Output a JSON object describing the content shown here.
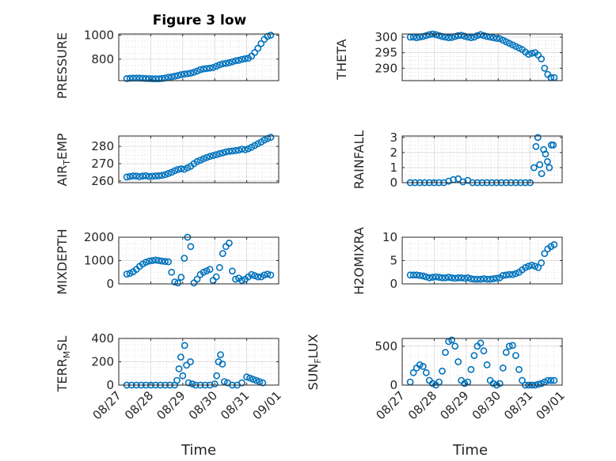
{
  "figure": {
    "title": "Figure 3 low",
    "xlabel": "Time"
  },
  "colors": {
    "marker": "#0072bd",
    "axis": "#262626"
  },
  "chart_data": [
    {
      "type": "scatter",
      "ylabel": "PRESSURE",
      "title": "Figure 3 low",
      "xlim": [
        "08/27",
        "09/01"
      ],
      "ylim": [
        620,
        1010
      ],
      "yticks": [
        800,
        1000
      ],
      "grid": true,
      "x": [
        0.25,
        0.35,
        0.45,
        0.55,
        0.65,
        0.75,
        0.85,
        0.95,
        1.05,
        1.15,
        1.25,
        1.35,
        1.45,
        1.55,
        1.65,
        1.75,
        1.85,
        1.95,
        2.05,
        2.15,
        2.25,
        2.35,
        2.45,
        2.55,
        2.65,
        2.75,
        2.85,
        2.95,
        3.05,
        3.15,
        3.25,
        3.35,
        3.45,
        3.55,
        3.65,
        3.75,
        3.85,
        3.95,
        4.05,
        4.15,
        4.25,
        4.35,
        4.45,
        4.55,
        4.65,
        4.75
      ],
      "values": [
        637,
        640,
        641,
        641,
        641,
        640,
        638,
        637,
        636,
        636,
        636,
        638,
        642,
        648,
        652,
        657,
        663,
        670,
        675,
        678,
        683,
        690,
        700,
        712,
        718,
        722,
        725,
        730,
        740,
        752,
        760,
        765,
        770,
        778,
        786,
        790,
        798,
        803,
        808,
        825,
        855,
        890,
        930,
        965,
        990,
        1000
      ]
    },
    {
      "type": "scatter",
      "ylabel": "THETA",
      "xlim": [
        "08/27",
        "09/01"
      ],
      "ylim": [
        286,
        301
      ],
      "yticks": [
        290,
        295,
        300
      ],
      "grid": true,
      "x": [
        0.25,
        0.35,
        0.45,
        0.55,
        0.65,
        0.75,
        0.85,
        0.95,
        1.05,
        1.15,
        1.25,
        1.35,
        1.45,
        1.55,
        1.65,
        1.75,
        1.85,
        1.95,
        2.05,
        2.15,
        2.25,
        2.35,
        2.45,
        2.55,
        2.65,
        2.75,
        2.85,
        2.95,
        3.05,
        3.15,
        3.25,
        3.35,
        3.45,
        3.55,
        3.65,
        3.75,
        3.85,
        3.95,
        4.05,
        4.15,
        4.25,
        4.35,
        4.45,
        4.55,
        4.65,
        4.75
      ],
      "values": [
        300,
        300,
        299.8,
        300,
        300.2,
        300.5,
        300.8,
        301,
        300.8,
        300.5,
        300.2,
        300,
        299.8,
        299.9,
        300.2,
        300.5,
        300.6,
        300.3,
        300,
        299.8,
        300,
        300.5,
        300.8,
        300.5,
        300.2,
        300,
        299.8,
        299.6,
        299.5,
        299,
        298.5,
        298,
        297.5,
        297,
        296.5,
        296,
        295.2,
        294.5,
        294.8,
        295,
        294.2,
        293,
        290,
        288,
        287,
        287
      ]
    },
    {
      "type": "scatter",
      "ylabel": "AIR_TEMP",
      "xlim": [
        "08/27",
        "09/01"
      ],
      "ylim": [
        259,
        286
      ],
      "yticks": [
        260,
        270,
        280
      ],
      "grid": true,
      "x": [
        0.25,
        0.35,
        0.45,
        0.55,
        0.65,
        0.75,
        0.85,
        0.95,
        1.05,
        1.15,
        1.25,
        1.35,
        1.45,
        1.55,
        1.65,
        1.75,
        1.85,
        1.95,
        2.05,
        2.15,
        2.25,
        2.35,
        2.45,
        2.55,
        2.65,
        2.75,
        2.85,
        2.95,
        3.05,
        3.15,
        3.25,
        3.35,
        3.45,
        3.55,
        3.65,
        3.75,
        3.85,
        3.95,
        4.05,
        4.15,
        4.25,
        4.35,
        4.45,
        4.55,
        4.65,
        4.75
      ],
      "values": [
        262.3,
        262.6,
        262.9,
        262.8,
        262.5,
        262.8,
        263,
        262.6,
        262.7,
        262.9,
        263,
        263.2,
        263.6,
        264.3,
        265,
        265.9,
        266.6,
        267,
        266.8,
        267.6,
        268.5,
        270,
        271.2,
        272,
        272.8,
        273.6,
        274.2,
        274.7,
        275.2,
        275.8,
        276.2,
        276.8,
        277.1,
        277.3,
        277.6,
        277.8,
        278.4,
        278.1,
        278.6,
        279.5,
        280.5,
        281.5,
        282.5,
        283.6,
        284.5,
        285.2
      ]
    },
    {
      "type": "scatter",
      "ylabel": "RAINFALL",
      "xlim": [
        "08/27",
        "09/01"
      ],
      "ylim": [
        0,
        3.1
      ],
      "yticks": [
        0,
        1,
        2,
        3
      ],
      "grid": true,
      "x": [
        0.25,
        0.4,
        0.55,
        0.7,
        0.85,
        1.0,
        1.15,
        1.3,
        1.45,
        1.6,
        1.75,
        1.9,
        2.05,
        2.2,
        2.35,
        2.5,
        2.65,
        2.8,
        2.95,
        3.1,
        3.25,
        3.4,
        3.55,
        3.7,
        3.85,
        4.0,
        4.12,
        4.18,
        4.24,
        4.3,
        4.36,
        4.42,
        4.48,
        4.54,
        4.6,
        4.66,
        4.72
      ],
      "values": [
        0,
        0,
        0,
        0,
        0,
        0,
        0,
        0,
        0.1,
        0.2,
        0.25,
        0.05,
        0.15,
        0,
        0,
        0,
        0,
        0,
        0,
        0,
        0,
        0,
        0,
        0,
        0,
        0,
        1.0,
        2.4,
        3.0,
        1.2,
        0.6,
        2.2,
        1.9,
        1.4,
        1.0,
        2.5,
        2.5
      ]
    },
    {
      "type": "scatter",
      "ylabel": "MIXDEPTH",
      "xlim": [
        "08/27",
        "09/01"
      ],
      "ylim": [
        0,
        2000
      ],
      "yticks": [
        0,
        1000,
        2000
      ],
      "grid": true,
      "x": [
        0.25,
        0.35,
        0.45,
        0.55,
        0.65,
        0.75,
        0.85,
        0.95,
        1.05,
        1.15,
        1.25,
        1.35,
        1.45,
        1.55,
        1.65,
        1.75,
        1.85,
        1.95,
        2.05,
        2.15,
        2.25,
        2.35,
        2.45,
        2.55,
        2.65,
        2.75,
        2.85,
        2.95,
        3.05,
        3.15,
        3.25,
        3.35,
        3.45,
        3.55,
        3.65,
        3.75,
        3.85,
        3.95,
        4.05,
        4.15,
        4.25,
        4.35,
        4.45,
        4.55,
        4.65,
        4.75
      ],
      "values": [
        420,
        450,
        520,
        620,
        750,
        850,
        930,
        980,
        1000,
        1020,
        1000,
        980,
        960,
        950,
        500,
        80,
        40,
        280,
        1100,
        2000,
        1600,
        40,
        200,
        400,
        500,
        560,
        620,
        150,
        300,
        700,
        1300,
        1600,
        1750,
        550,
        200,
        250,
        150,
        200,
        300,
        400,
        350,
        300,
        300,
        380,
        420,
        380
      ]
    },
    {
      "type": "scatter",
      "ylabel": "H2OMIXRA",
      "xlim": [
        "08/27",
        "09/01"
      ],
      "ylim": [
        0,
        10
      ],
      "yticks": [
        0,
        5,
        10
      ],
      "grid": true,
      "x": [
        0.25,
        0.35,
        0.45,
        0.55,
        0.65,
        0.75,
        0.85,
        0.95,
        1.05,
        1.15,
        1.25,
        1.35,
        1.45,
        1.55,
        1.65,
        1.75,
        1.85,
        1.95,
        2.05,
        2.15,
        2.25,
        2.35,
        2.45,
        2.55,
        2.65,
        2.75,
        2.85,
        2.95,
        3.05,
        3.15,
        3.25,
        3.35,
        3.45,
        3.55,
        3.65,
        3.75,
        3.85,
        3.95,
        4.05,
        4.15,
        4.25,
        4.35,
        4.45,
        4.55,
        4.65,
        4.75
      ],
      "values": [
        1.9,
        1.9,
        1.9,
        1.8,
        1.7,
        1.5,
        1.3,
        1.4,
        1.5,
        1.4,
        1.3,
        1.3,
        1.4,
        1.3,
        1.2,
        1.3,
        1.3,
        1.2,
        1.3,
        1.1,
        1.0,
        1.0,
        1.0,
        1.1,
        1.0,
        1.0,
        1.1,
        1.2,
        1.3,
        1.8,
        1.9,
        2.0,
        2.0,
        2.2,
        2.5,
        3.0,
        3.5,
        3.8,
        4.0,
        3.8,
        3.5,
        4.5,
        6.5,
        7.5,
        8.0,
        8.4
      ]
    },
    {
      "type": "scatter",
      "ylabel": "TERR_MSL",
      "xlim": [
        "08/27",
        "09/01"
      ],
      "ylim": [
        0,
        400
      ],
      "yticks": [
        0,
        200,
        400
      ],
      "grid": true,
      "x": [
        0.25,
        0.4,
        0.55,
        0.7,
        0.85,
        1.0,
        1.15,
        1.3,
        1.45,
        1.6,
        1.75,
        1.82,
        1.88,
        1.94,
        2.0,
        2.06,
        2.12,
        2.18,
        2.24,
        2.3,
        2.4,
        2.55,
        2.7,
        2.85,
        3.0,
        3.06,
        3.12,
        3.18,
        3.24,
        3.3,
        3.4,
        3.55,
        3.7,
        3.85,
        4.0,
        4.1,
        4.2,
        4.3,
        4.4,
        4.5
      ],
      "values": [
        0,
        0,
        0,
        0,
        0,
        0,
        0,
        0,
        0,
        0,
        0,
        40,
        140,
        240,
        80,
        340,
        170,
        20,
        200,
        10,
        0,
        0,
        0,
        0,
        10,
        80,
        200,
        260,
        180,
        30,
        20,
        0,
        0,
        20,
        70,
        60,
        50,
        40,
        30,
        20
      ]
    },
    {
      "type": "scatter",
      "ylabel": "SUN_FLUX",
      "xlim": [
        "08/27",
        "09/01"
      ],
      "ylim": [
        0,
        600
      ],
      "yticks": [
        0,
        500
      ],
      "grid": true,
      "x": [
        0.25,
        0.35,
        0.45,
        0.55,
        0.65,
        0.75,
        0.85,
        0.95,
        1.05,
        1.15,
        1.25,
        1.35,
        1.45,
        1.55,
        1.65,
        1.75,
        1.85,
        1.95,
        2.05,
        2.15,
        2.25,
        2.35,
        2.45,
        2.55,
        2.65,
        2.75,
        2.85,
        2.95,
        3.05,
        3.15,
        3.25,
        3.35,
        3.45,
        3.55,
        3.65,
        3.75,
        3.85,
        3.95,
        4.05,
        4.15,
        4.25,
        4.35,
        4.45,
        4.55,
        4.65,
        4.75
      ],
      "values": [
        40,
        160,
        220,
        260,
        240,
        160,
        60,
        20,
        0,
        40,
        180,
        420,
        560,
        580,
        500,
        300,
        60,
        20,
        40,
        200,
        380,
        500,
        540,
        440,
        260,
        60,
        20,
        0,
        20,
        220,
        420,
        500,
        510,
        380,
        200,
        60,
        0,
        0,
        0,
        0,
        10,
        20,
        40,
        60,
        60,
        60
      ]
    }
  ],
  "axes_text": {
    "pressure": {
      "ylabel": "PRESSURE",
      "ticks": [
        "800",
        "1000"
      ]
    },
    "theta": {
      "ylabel": "THETA",
      "ticks": [
        "290",
        "295",
        "300"
      ]
    },
    "air_temp": {
      "ylabel_main": "AIR",
      "ylabel_sub": "T",
      "ylabel_rest": "EMP",
      "ticks": [
        "260",
        "270",
        "280"
      ]
    },
    "rainfall": {
      "ylabel": "RAINFALL",
      "ticks": [
        "0",
        "1",
        "2",
        "3"
      ]
    },
    "mixdepth": {
      "ylabel": "MIXDEPTH",
      "ticks": [
        "0",
        "1000",
        "2000"
      ]
    },
    "h2omixra": {
      "ylabel": "H2OMIXRA",
      "ticks": [
        "0",
        "5",
        "10"
      ]
    },
    "terr_msl": {
      "ylabel_main": "TERR",
      "ylabel_sub": "M",
      "ylabel_rest": "SL",
      "ticks": [
        "0",
        "200",
        "400"
      ]
    },
    "sun_flux": {
      "ylabel_main": "SUN",
      "ylabel_sub": "F",
      "ylabel_rest": "LUX",
      "ticks": [
        "0",
        "500"
      ]
    }
  },
  "xticks": [
    "08/27",
    "08/28",
    "08/29",
    "08/30",
    "08/31",
    "09/01"
  ]
}
